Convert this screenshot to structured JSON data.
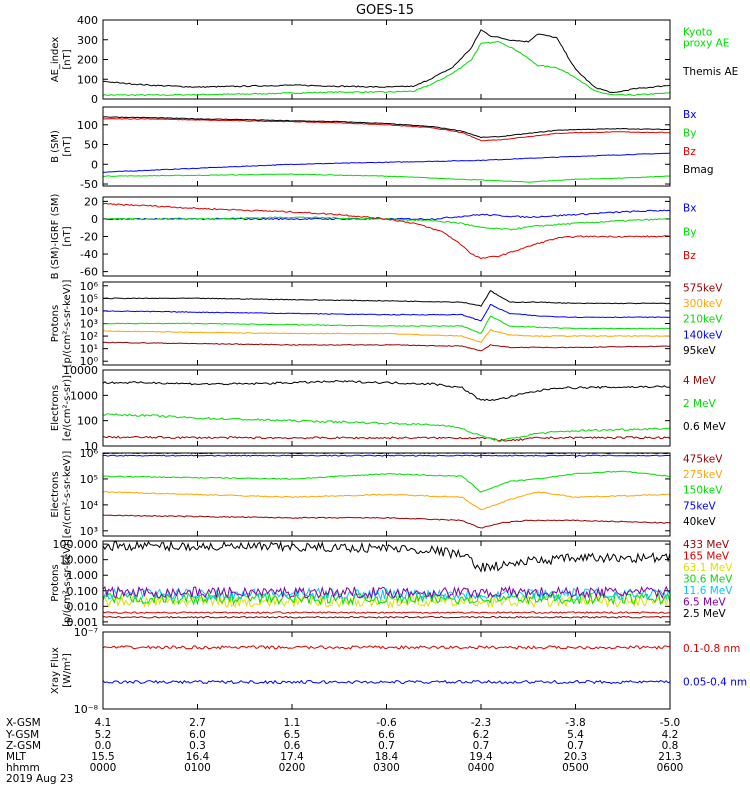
{
  "title": "GOES-15",
  "colors": {
    "black": "#000000",
    "blue": "#0000ff",
    "green": "#00dd00",
    "red": "#dd0000",
    "orange": "#ffa500",
    "darkred": "#990000",
    "yellow": "#e0e000",
    "cyan": "#00c8ff",
    "purple": "#8800aa"
  },
  "chart_data": [
    {
      "id": "ae",
      "type": "line",
      "ylabel": [
        "AE_index",
        "[nT]"
      ],
      "ylim": [
        0,
        400
      ],
      "ticks": [
        "0",
        "100",
        "200",
        "300",
        "400"
      ],
      "tick_values": [
        0,
        100,
        200,
        300,
        400
      ],
      "log": false,
      "series": [
        {
          "name": "Kyoto proxy AE",
          "name_lines": [
            "Kyoto",
            "proxy AE"
          ],
          "color": "green",
          "x": [
            0,
            0.3,
            0.6,
            1,
            1.5,
            2,
            2.5,
            3,
            3.3,
            3.5,
            3.7,
            3.9,
            4,
            4.2,
            4.4,
            4.6,
            4.8,
            5,
            5.2,
            5.4,
            5.6,
            6
          ],
          "values": [
            20,
            20,
            20,
            22,
            25,
            30,
            35,
            35,
            40,
            80,
            130,
            200,
            280,
            290,
            240,
            170,
            160,
            110,
            40,
            20,
            20,
            30
          ]
        },
        {
          "name": "Themis AE",
          "name_lines": [
            "Themis AE"
          ],
          "color": "black",
          "x": [
            0,
            0.2,
            0.5,
            1,
            1.5,
            2,
            2.5,
            3,
            3.3,
            3.5,
            3.7,
            3.9,
            4,
            4.1,
            4.3,
            4.5,
            4.6,
            4.8,
            5,
            5.2,
            5.4,
            5.6,
            5.8,
            6
          ],
          "values": [
            90,
            80,
            70,
            60,
            65,
            70,
            65,
            60,
            65,
            110,
            160,
            260,
            350,
            320,
            300,
            290,
            330,
            310,
            150,
            60,
            30,
            50,
            60,
            70
          ]
        }
      ]
    },
    {
      "id": "bsm",
      "type": "line",
      "ylabel": [
        "B (SM)",
        "[nT]"
      ],
      "ylim": [
        -55,
        145
      ],
      "ticks": [
        "-50",
        "0",
        "50",
        "100"
      ],
      "tick_values": [
        -50,
        0,
        50,
        100
      ],
      "log": false,
      "series": [
        {
          "name": "Bx",
          "name_lines": [
            "Bx"
          ],
          "color": "blue",
          "x": [
            0,
            1,
            2,
            3,
            4,
            5,
            6
          ],
          "values": [
            -20,
            -10,
            0,
            5,
            10,
            20,
            28
          ]
        },
        {
          "name": "By",
          "name_lines": [
            "By"
          ],
          "color": "green",
          "x": [
            0,
            1,
            2,
            3,
            3.5,
            4,
            4.5,
            5,
            5.5,
            6
          ],
          "values": [
            -30,
            -28,
            -25,
            -30,
            -35,
            -40,
            -45,
            -38,
            -35,
            -30
          ]
        },
        {
          "name": "Bz",
          "name_lines": [
            "Bz"
          ],
          "color": "red",
          "x": [
            0,
            0.5,
            1,
            1.5,
            2,
            2.5,
            3,
            3.5,
            3.8,
            4,
            4.2,
            4.5,
            4.8,
            5,
            5.5,
            6
          ],
          "values": [
            115,
            115,
            112,
            110,
            108,
            105,
            100,
            92,
            80,
            60,
            62,
            70,
            78,
            80,
            82,
            80
          ]
        },
        {
          "name": "Bmag",
          "name_lines": [
            "Bmag"
          ],
          "color": "black",
          "x": [
            0,
            0.5,
            1,
            1.5,
            2,
            2.5,
            3,
            3.5,
            3.8,
            4,
            4.2,
            4.5,
            4.8,
            5,
            5.5,
            6
          ],
          "values": [
            120,
            118,
            115,
            113,
            110,
            108,
            103,
            95,
            84,
            68,
            70,
            78,
            86,
            88,
            90,
            88
          ]
        }
      ]
    },
    {
      "id": "bdiff",
      "type": "line",
      "ylabel": [
        "B (SM)-IGRF (SM)",
        "[nT]"
      ],
      "ylim": [
        -65,
        25
      ],
      "ticks": [
        "-60",
        "-40",
        "-20",
        "0",
        "20"
      ],
      "tick_values": [
        -60,
        -40,
        -20,
        0,
        20
      ],
      "log": false,
      "series": [
        {
          "name": "Bx",
          "name_lines": [
            "Bx"
          ],
          "color": "blue",
          "x": [
            0,
            1,
            2,
            3,
            3.5,
            4,
            4.5,
            5,
            5.5,
            6
          ],
          "values": [
            0,
            0,
            0,
            0,
            0,
            5,
            2,
            5,
            8,
            10
          ]
        },
        {
          "name": "By",
          "name_lines": [
            "By"
          ],
          "color": "green",
          "x": [
            0,
            1,
            2,
            3,
            3.5,
            3.8,
            4,
            4.3,
            4.6,
            5,
            5.5,
            6
          ],
          "values": [
            0,
            0,
            2,
            0,
            -2,
            -5,
            -10,
            -12,
            -8,
            -5,
            -2,
            0
          ]
        },
        {
          "name": "Bz",
          "name_lines": [
            "Bz"
          ],
          "color": "red",
          "x": [
            0,
            0.5,
            1,
            1.5,
            2,
            2.5,
            3,
            3.3,
            3.6,
            3.8,
            3.9,
            4,
            4.2,
            4.4,
            4.6,
            4.8,
            5,
            5.5,
            6
          ],
          "values": [
            17,
            15,
            12,
            10,
            8,
            5,
            0,
            -5,
            -15,
            -30,
            -40,
            -45,
            -42,
            -35,
            -28,
            -22,
            -20,
            -20,
            -20
          ]
        }
      ]
    },
    {
      "id": "protons_kev",
      "type": "line",
      "ylabel": [
        "Protons",
        "[p/(cm²-s-sr-keV)]"
      ],
      "ylim": [
        -0.3,
        6.3
      ],
      "ticks": [
        "10⁰",
        "10¹",
        "10²",
        "10³",
        "10⁴",
        "10⁵",
        "10⁶"
      ],
      "tick_values": [
        0,
        1,
        2,
        3,
        4,
        5,
        6
      ],
      "log": true,
      "series": [
        {
          "name": "575keV",
          "name_lines": [
            "575keV"
          ],
          "color": "darkred",
          "x": [
            0,
            1,
            2,
            3,
            3.8,
            4,
            4.1,
            4.3,
            4.6,
            5,
            6
          ],
          "values": [
            1.5,
            1.4,
            1.3,
            1.3,
            1.2,
            0.8,
            1.3,
            1.1,
            1.1,
            1.1,
            1.2
          ]
        },
        {
          "name": "300keV",
          "name_lines": [
            "300keV"
          ],
          "color": "orange",
          "x": [
            0,
            1,
            2,
            3,
            3.8,
            4,
            4.1,
            4.3,
            4.6,
            5,
            6
          ],
          "values": [
            2.4,
            2.3,
            2.2,
            2.2,
            2,
            1.5,
            2.5,
            2.1,
            2,
            2,
            2
          ]
        },
        {
          "name": "210keV",
          "name_lines": [
            "210keV"
          ],
          "color": "green",
          "x": [
            0,
            1,
            2,
            3,
            3.8,
            4,
            4.1,
            4.3,
            4.6,
            5,
            6
          ],
          "values": [
            3,
            3,
            2.9,
            2.8,
            2.8,
            2.2,
            3.6,
            2.8,
            2.7,
            2.6,
            2.6
          ]
        },
        {
          "name": "140keV",
          "name_lines": [
            "140keV"
          ],
          "color": "blue",
          "x": [
            0,
            1,
            2,
            3,
            3.8,
            4,
            4.1,
            4.3,
            4.6,
            5,
            6
          ],
          "values": [
            4,
            3.9,
            3.8,
            3.7,
            3.7,
            3.2,
            4.5,
            3.8,
            3.6,
            3.5,
            3.5
          ]
        },
        {
          "name": "95keV",
          "name_lines": [
            "95keV"
          ],
          "color": "black",
          "x": [
            0,
            1,
            2,
            3,
            3.8,
            4,
            4.1,
            4.3,
            4.6,
            5,
            6
          ],
          "values": [
            5,
            5,
            4.9,
            4.8,
            4.7,
            4.4,
            5.6,
            4.7,
            4.7,
            4.6,
            4.6
          ]
        }
      ]
    },
    {
      "id": "electrons_mev",
      "type": "line",
      "ylabel": [
        "Electrons",
        "[e/(cm²-s-sr)]"
      ],
      "ylim": [
        1,
        4
      ],
      "ticks": [
        "10",
        "100",
        "1000",
        "10000"
      ],
      "tick_values": [
        1,
        2,
        3,
        4
      ],
      "log": true,
      "series": [
        {
          "name": "4 MeV",
          "name_lines": [
            "4 MeV"
          ],
          "color": "darkred",
          "x": [
            0,
            1,
            2,
            3,
            4,
            4.3,
            4.6,
            5,
            6
          ],
          "values": [
            1.35,
            1.33,
            1.32,
            1.32,
            1.32,
            1.2,
            1.32,
            1.33,
            1.33
          ]
        },
        {
          "name": "2 MeV",
          "name_lines": [
            "2 MeV"
          ],
          "color": "green",
          "x": [
            0,
            0.5,
            1,
            2,
            3,
            3.7,
            4,
            4.2,
            4.6,
            5,
            6
          ],
          "values": [
            2.25,
            2.2,
            2.1,
            2,
            1.9,
            1.8,
            1.4,
            1.2,
            1.5,
            1.6,
            1.7
          ]
        },
        {
          "name": "0.6 MeV",
          "name_lines": [
            "0.6 MeV"
          ],
          "color": "black",
          "x": [
            0,
            0.5,
            1,
            1.5,
            2,
            2.5,
            3,
            3.5,
            3.8,
            4,
            4.2,
            4.5,
            4.8,
            5,
            6
          ],
          "values": [
            3.5,
            3.5,
            3.45,
            3.45,
            3.5,
            3.55,
            3.5,
            3.45,
            3.3,
            2.8,
            2.85,
            3.1,
            3.3,
            3.3,
            3.35
          ]
        }
      ]
    },
    {
      "id": "electrons_kev",
      "type": "line",
      "ylabel": [
        "Electrons",
        "[e/(cm²-s-sr-keV)]"
      ],
      "ylim": [
        2.8,
        6
      ],
      "ticks": [
        "10³",
        "10⁴",
        "10⁵",
        "10⁶"
      ],
      "tick_values": [
        3,
        4,
        5,
        6
      ],
      "log": true,
      "series": [
        {
          "name": "475keV",
          "name_lines": [
            "475keV"
          ],
          "color": "darkred",
          "x": [
            0,
            1,
            2,
            3,
            3.8,
            4,
            4.2,
            4.5,
            5,
            6
          ],
          "values": [
            3.6,
            3.55,
            3.5,
            3.5,
            3.4,
            3.1,
            3.3,
            3.4,
            3.4,
            3.3
          ]
        },
        {
          "name": "275keV",
          "name_lines": [
            "275keV"
          ],
          "color": "orange",
          "x": [
            0,
            1,
            2,
            3,
            3.8,
            4,
            4.3,
            4.6,
            5,
            6
          ],
          "values": [
            4.5,
            4.4,
            4.3,
            4.4,
            4.3,
            3.8,
            4.2,
            4.5,
            4.3,
            4.4
          ]
        },
        {
          "name": "150keV",
          "name_lines": [
            "150keV"
          ],
          "color": "green",
          "x": [
            0,
            1,
            2,
            3,
            3.8,
            4,
            4.3,
            4.6,
            5,
            5.5,
            6
          ],
          "values": [
            5.1,
            5.05,
            5,
            5.2,
            5.1,
            4.5,
            4.9,
            5,
            5.2,
            5.3,
            5.1
          ]
        },
        {
          "name": "75keV",
          "name_lines": [
            "75keV"
          ],
          "color": "blue",
          "x": [
            0,
            6
          ],
          "values": [
            5.9,
            5.9
          ]
        },
        {
          "name": "40keV",
          "name_lines": [
            "40keV"
          ],
          "color": "black",
          "x": [
            0,
            6
          ],
          "values": [
            6,
            6
          ]
        }
      ]
    },
    {
      "id": "protons_mev",
      "type": "line",
      "ylabel": [
        "Protons",
        "[p/(cm²-s-sr-keV)]"
      ],
      "ylim": [
        -3.2,
        2.2
      ],
      "ticks": [
        "0.001",
        "0.010",
        "0.100",
        "1.000",
        "10.000",
        "100.000"
      ],
      "tick_values": [
        -3,
        -2,
        -1,
        0,
        1,
        2
      ],
      "log": true,
      "series": [
        {
          "name": "433 MeV",
          "name_lines": [
            "433 MeV"
          ],
          "color": "darkred",
          "x": [
            0,
            6
          ],
          "values": [
            -2.7,
            -2.7
          ]
        },
        {
          "name": "165 MeV",
          "name_lines": [
            "165 MeV"
          ],
          "color": "red",
          "x": [
            0,
            6
          ],
          "values": [
            -2.4,
            -2.4
          ]
        },
        {
          "name": "63.1 MeV",
          "name_lines": [
            "63.1 MeV"
          ],
          "color": "yellow",
          "x": [
            0,
            6
          ],
          "values": [
            -1.7,
            -1.7
          ]
        },
        {
          "name": "30.6 MeV",
          "name_lines": [
            "30.6 MeV"
          ],
          "color": "green",
          "x": [
            0,
            6
          ],
          "values": [
            -1.5,
            -1.5
          ]
        },
        {
          "name": "11.6 MeV",
          "name_lines": [
            "11.6 MeV"
          ],
          "color": "cyan",
          "x": [
            0,
            6
          ],
          "values": [
            -1.2,
            -1.2
          ]
        },
        {
          "name": "6.5 MeV",
          "name_lines": [
            "6.5 MeV"
          ],
          "color": "purple",
          "x": [
            0,
            6
          ],
          "values": [
            -1.1,
            -1.1
          ]
        },
        {
          "name": "2.5 MeV",
          "name_lines": [
            "2.5 MeV"
          ],
          "color": "black",
          "x": [
            0,
            1,
            2,
            3,
            3.5,
            3.8,
            4,
            4.2,
            4.5,
            5,
            5.5,
            6
          ],
          "values": [
            1.9,
            1.85,
            1.8,
            1.75,
            1.6,
            1.3,
            0.5,
            0.6,
            0.9,
            1.1,
            1.1,
            1.15
          ]
        }
      ]
    },
    {
      "id": "xray",
      "type": "line",
      "ylabel": [
        "Xray Flux",
        "[W/m²]"
      ],
      "ylim": [
        -8,
        -7
      ],
      "ticks": [
        "10⁻⁸",
        "10⁻⁷"
      ],
      "tick_values": [
        -8,
        -7
      ],
      "log": true,
      "series": [
        {
          "name": "0.1-0.8 nm",
          "name_lines": [
            "0.1-0.8 nm"
          ],
          "color": "red",
          "x": [
            0,
            6
          ],
          "values": [
            -7.2,
            -7.2
          ]
        },
        {
          "name": "0.05-0.4 nm",
          "name_lines": [
            "0.05-0.4 nm"
          ],
          "color": "blue",
          "x": [
            0,
            6
          ],
          "values": [
            -7.65,
            -7.65
          ]
        }
      ]
    }
  ],
  "ephemeris": {
    "labels": [
      "X-GSM",
      "Y-GSM",
      "Z-GSM",
      "MLT",
      "hhmm"
    ],
    "date": "2019 Aug 23",
    "columns": [
      [
        "4.1",
        "5.2",
        "0.0",
        "15.5",
        "0000"
      ],
      [
        "2.7",
        "6.0",
        "0.3",
        "16.4",
        "0100"
      ],
      [
        "1.1",
        "6.5",
        "0.6",
        "17.4",
        "0200"
      ],
      [
        "-0.6",
        "6.6",
        "0.7",
        "18.4",
        "0300"
      ],
      [
        "-2.3",
        "6.2",
        "0.7",
        "19.4",
        "0400"
      ],
      [
        "-3.8",
        "5.4",
        "0.7",
        "20.3",
        "0500"
      ],
      [
        "-5.0",
        "4.2",
        "0.8",
        "21.3",
        "0600"
      ]
    ]
  }
}
